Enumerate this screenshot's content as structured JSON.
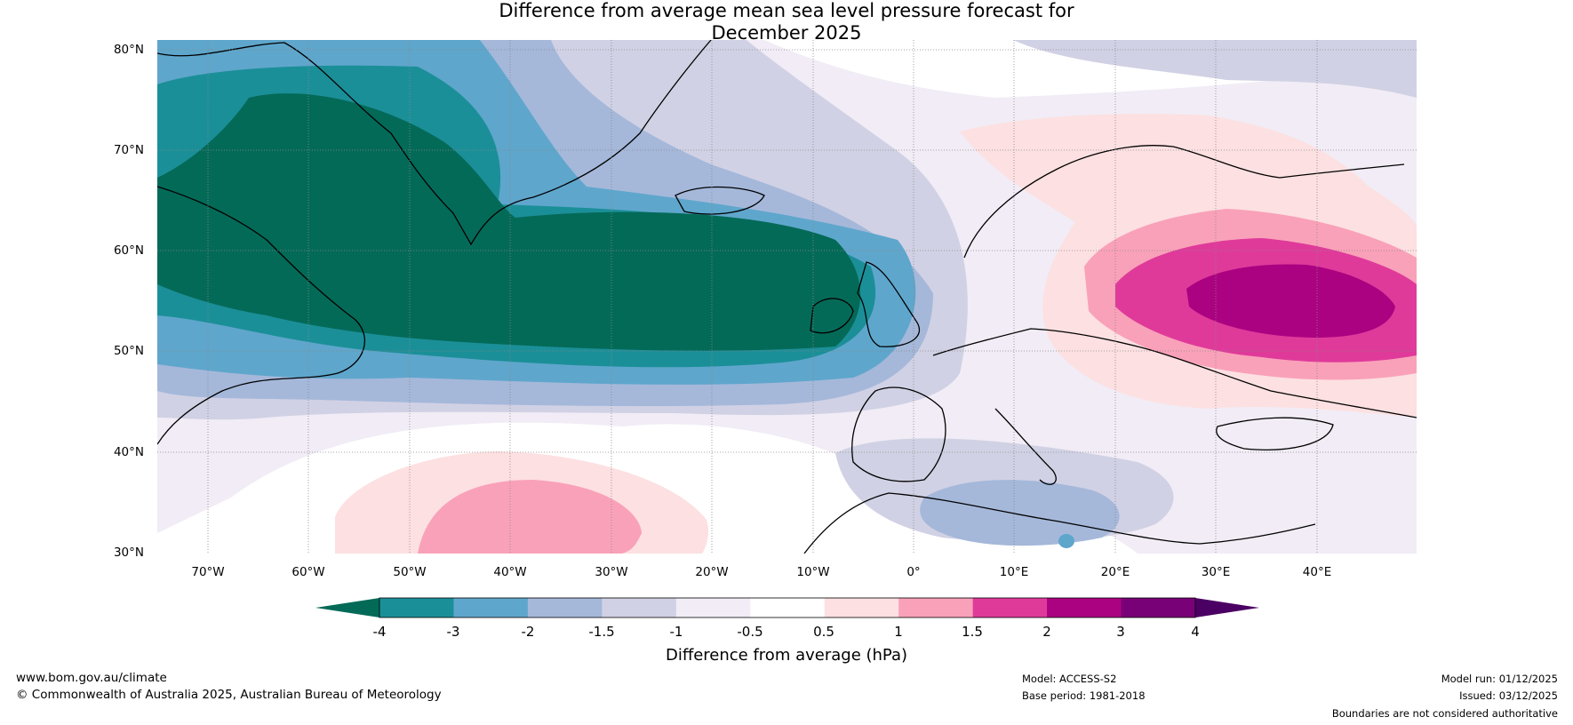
{
  "title_line1": "Difference from average mean sea level pressure forecast for",
  "title_line2": "December 2025",
  "lat_labels": [
    "80°N",
    "70°N",
    "60°N",
    "50°N",
    "40°N",
    "30°N"
  ],
  "lon_labels": [
    "70°W",
    "60°W",
    "50°W",
    "40°W",
    "30°W",
    "20°W",
    "10°W",
    "0°",
    "10°E",
    "20°E",
    "30°E",
    "40°E"
  ],
  "colorbar": {
    "ticks": [
      "-4",
      "-3",
      "-2",
      "-1.5",
      "-1",
      "-0.5",
      "0.5",
      "1",
      "1.5",
      "2",
      "3",
      "4"
    ],
    "colors": [
      "#046a58",
      "#1b8f98",
      "#5fa6cc",
      "#a5b8da",
      "#d1d1e5",
      "#f1ecf5",
      "#ffffff",
      "#fde0e1",
      "#f9a1b9",
      "#df3a9a",
      "#ab0281",
      "#790177",
      "#4b0063"
    ],
    "label": "Difference from average (hPa)"
  },
  "footer": {
    "website": "www.bom.gov.au/climate",
    "copyright": "© Commonwealth of Australia 2025, Australian Bureau of Meteorology",
    "model": "Model: ACCESS-S2",
    "base_period": "Base period: 1981-2018",
    "model_run": "Model run: 01/12/2025",
    "issued": "Issued: 03/12/2025",
    "disclaimer": "Boundaries are not considered authoritative"
  }
}
